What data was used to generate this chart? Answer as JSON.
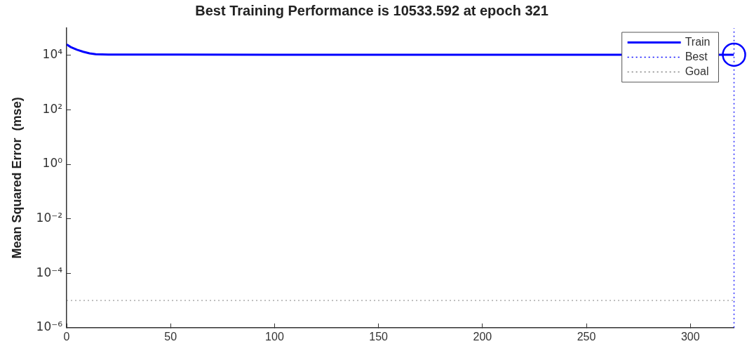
{
  "chart_data": {
    "type": "line",
    "title": "Best Training Performance is 10533.592 at epoch 321",
    "ylabel": "Mean Squared Error  (mse)",
    "log": "y",
    "grid": false,
    "legend": "top right",
    "xlim": [
      0,
      321
    ],
    "xticks": [
      0,
      50,
      100,
      150,
      200,
      250,
      300
    ],
    "ylim": [
      1e-06,
      100000
    ],
    "yticks": [
      {
        "value": 1e-06,
        "label": "10⁻⁶"
      },
      {
        "value": 0.0001,
        "label": "10⁻⁴"
      },
      {
        "value": 0.01,
        "label": "10⁻²"
      },
      {
        "value": 1,
        "label": "10⁰"
      },
      {
        "value": 100,
        "label": "10²"
      },
      {
        "value": 10000,
        "label": "10⁴"
      }
    ],
    "series": [
      {
        "name": "Train",
        "color": "#0000ff",
        "line_style": "solid",
        "marker": "none",
        "x": [
          0,
          2,
          5,
          8,
          11,
          14,
          20,
          50,
          100,
          200,
          321
        ],
        "values": [
          25000,
          20000,
          16000,
          13500,
          11800,
          10900,
          10700,
          10600,
          10550,
          10540,
          10533.592
        ]
      },
      {
        "type": "scatter",
        "color": "#0000ff",
        "marker": "circle",
        "x": [
          321
        ],
        "values": [
          10533.592
        ]
      }
    ],
    "ref_lines": [
      {
        "axis": "x",
        "value": 321,
        "label": "Best",
        "color": "#0000ff",
        "line_style": "dotted"
      },
      {
        "axis": "y",
        "value": 1e-05,
        "label": "Goal",
        "color": "#808080",
        "line_style": "dotted"
      }
    ]
  }
}
